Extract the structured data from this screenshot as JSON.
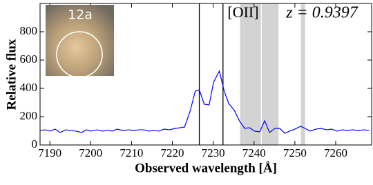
{
  "chart_data": {
    "type": "line",
    "xlabel": "Observed wavelength [Å]",
    "ylabel": "Relative flux",
    "annotations": [
      "[OII]",
      "z = 0.9397"
    ],
    "inset_label": "12a",
    "series": [
      {
        "color": "#0000ff",
        "x": [
          7187.6,
          7188.8,
          7190,
          7191.3,
          7192.5,
          7193.9,
          7195,
          7196.4,
          7197.8,
          7198.9,
          7200,
          7201.5,
          7202.8,
          7204.1,
          7205.3,
          7206.5,
          7207.9,
          7209.2,
          7210.6,
          7211.8,
          7213,
          7214.3,
          7215.5,
          7216.7,
          7218,
          7219.3,
          7220.7,
          7222,
          7223,
          7224.4,
          7225.6,
          7226.6,
          7227.8,
          7229,
          7230.1,
          7231.5,
          7232.7,
          7233.8,
          7235.2,
          7236.4,
          7237.7,
          7238.9,
          7240.1,
          7241.4,
          7242.6,
          7243.8,
          7245.1,
          7246.3,
          7247.5,
          7248.7,
          7250,
          7251.4,
          7252.5,
          7253.7,
          7255.1,
          7256.4,
          7257.8,
          7259,
          7260.3,
          7261.7,
          7262.8,
          7264.2,
          7265.5,
          7266.9,
          7268.2
        ],
        "values": [
          102,
          107,
          98,
          112,
          88,
          107,
          102,
          98,
          88,
          107,
          98,
          107,
          98,
          102,
          98,
          112,
          102,
          107,
          102,
          107,
          107,
          98,
          102,
          98,
          112,
          107,
          117,
          122,
          127,
          244,
          380,
          390,
          288,
          283,
          444,
          522,
          380,
          293,
          244,
          171,
          117,
          122,
          98,
          93,
          171,
          88,
          117,
          117,
          83,
          98,
          112,
          132,
          117,
          98,
          112,
          117,
          107,
          112,
          98,
          107,
          102,
          107,
          102,
          107,
          102
        ]
      }
    ],
    "vlines": [
      7226.6,
      7232.4
    ],
    "shaded_regions": [
      [
        7236.6,
        7241.7
      ],
      [
        7241.9,
        7246.0
      ],
      [
        7251.5,
        7252.5
      ]
    ],
    "shade_color": "#d3d3d3",
    "xlim": [
      7187.6,
      7268.8
    ],
    "xticks": [
      7190,
      7200,
      7210,
      7220,
      7230,
      7240,
      7250,
      7260
    ],
    "ylim": [
      0,
      1000
    ],
    "yticks": [
      0,
      200,
      400,
      600,
      800
    ],
    "grid": false
  }
}
